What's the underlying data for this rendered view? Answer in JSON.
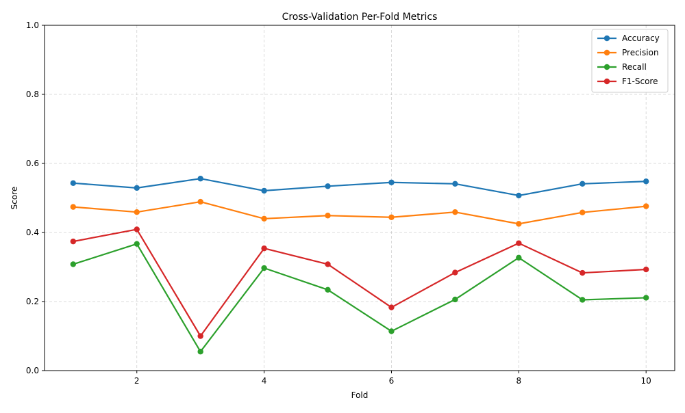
{
  "chart_data": {
    "type": "line",
    "title": "Cross-Validation Per-Fold Metrics",
    "xlabel": "Fold",
    "ylabel": "Score",
    "x": [
      1,
      2,
      3,
      4,
      5,
      6,
      7,
      8,
      9,
      10
    ],
    "xlim": [
      0.55,
      10.45
    ],
    "ylim": [
      0,
      1
    ],
    "xticks": [
      2,
      4,
      6,
      8,
      10
    ],
    "xtick_labels": [
      "2",
      "4",
      "6",
      "8",
      "10"
    ],
    "yticks": [
      0,
      0.2,
      0.4,
      0.6,
      0.8,
      1
    ],
    "ytick_labels": [
      "0.0",
      "0.2",
      "0.4",
      "0.6",
      "0.8",
      "1.0"
    ],
    "grid": true,
    "legend_position": "top-right",
    "series": [
      {
        "name": "Accuracy",
        "color": "#1f77b4",
        "values": [
          0.543,
          0.529,
          0.556,
          0.521,
          0.534,
          0.545,
          0.541,
          0.507,
          0.541,
          0.548
        ]
      },
      {
        "name": "Precision",
        "color": "#ff7f0e",
        "values": [
          0.474,
          0.459,
          0.489,
          0.44,
          0.449,
          0.444,
          0.459,
          0.425,
          0.458,
          0.476
        ]
      },
      {
        "name": "Recall",
        "color": "#2ca02c",
        "values": [
          0.308,
          0.367,
          0.055,
          0.297,
          0.234,
          0.114,
          0.206,
          0.327,
          0.205,
          0.211
        ]
      },
      {
        "name": "F1-Score",
        "color": "#d62728",
        "values": [
          0.374,
          0.409,
          0.1,
          0.354,
          0.308,
          0.183,
          0.284,
          0.369,
          0.283,
          0.293
        ]
      }
    ]
  }
}
